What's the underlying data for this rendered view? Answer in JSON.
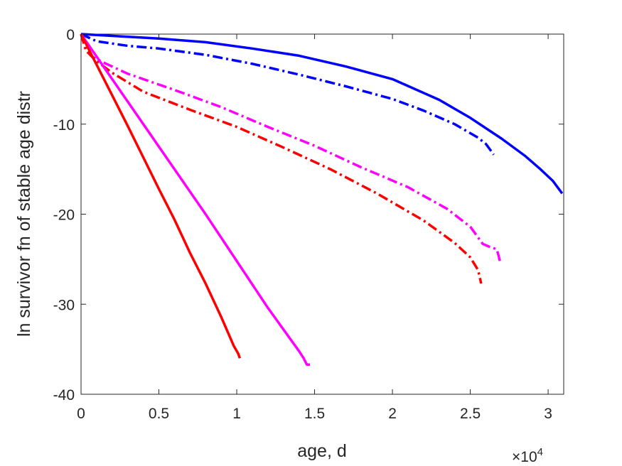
{
  "chart_data": {
    "type": "line",
    "xlabel": "age, d",
    "ylabel": "ln survivor fn of stable age distr",
    "x_multiplier": {
      "base": "×10",
      "exponent": "4"
    },
    "xlim": [
      0,
      31000
    ],
    "ylim": [
      -40,
      0
    ],
    "xticks": [
      0,
      5000,
      10000,
      15000,
      20000,
      25000,
      30000
    ],
    "xtick_labels": [
      "0",
      "0.5",
      "1",
      "1.5",
      "2",
      "2.5",
      "3"
    ],
    "yticks": [
      0,
      -10,
      -20,
      -30,
      -40
    ],
    "ytick_labels": [
      "0",
      "-10",
      "-20",
      "-30",
      "-40"
    ],
    "grid": false,
    "box": true,
    "series": [
      {
        "color": "#0000ff",
        "style": "solid",
        "x": [
          0,
          2000,
          5000,
          8000,
          11000,
          14000,
          17000,
          20000,
          23000,
          25000,
          27000,
          28500,
          29500,
          30300,
          30900
        ],
        "y": [
          0,
          -0.2,
          -0.5,
          -0.9,
          -1.6,
          -2.4,
          -3.6,
          -5.0,
          -7.3,
          -9.3,
          -11.6,
          -13.5,
          -15.0,
          -16.3,
          -17.7
        ]
      },
      {
        "color": "#0000ff",
        "style": "dashdot",
        "x": [
          0,
          1000,
          3000,
          5000,
          8000,
          11000,
          14000,
          17000,
          20000,
          22000,
          24000,
          25500,
          26000,
          26300,
          26500
        ],
        "y": [
          0,
          -0.8,
          -1.3,
          -1.6,
          -2.3,
          -3.3,
          -4.5,
          -5.8,
          -7.2,
          -8.5,
          -10.0,
          -11.5,
          -12.2,
          -12.9,
          -13.4
        ]
      },
      {
        "color": "#ff00ff",
        "style": "dashdot",
        "x": [
          0,
          300,
          700,
          1500,
          3000,
          6000,
          9000,
          12000,
          15000,
          18000,
          21000,
          23500,
          25000,
          25800,
          26200,
          26700,
          26800,
          26900
        ],
        "y": [
          0,
          -1.5,
          -2.5,
          -3.2,
          -4.4,
          -6.2,
          -8.1,
          -10.3,
          -12.4,
          -14.8,
          -17.0,
          -19.4,
          -21.4,
          -23.3,
          -23.6,
          -23.9,
          -24.5,
          -25.2
        ]
      },
      {
        "color": "#ff0000",
        "style": "dashdot",
        "x": [
          0,
          300,
          700,
          1000,
          2000,
          4000,
          7000,
          10000,
          13000,
          16000,
          19000,
          22000,
          24000,
          25000,
          25500,
          25700
        ],
        "y": [
          0,
          -1.8,
          -2.5,
          -3.0,
          -4.3,
          -6.4,
          -8.4,
          -10.3,
          -12.6,
          -15.0,
          -17.7,
          -20.7,
          -23.2,
          -24.8,
          -26.2,
          -27.7
        ]
      },
      {
        "color": "#ff00ff",
        "style": "solid",
        "x": [
          0,
          2000,
          4000,
          6000,
          8000,
          10000,
          12000,
          14000,
          14300,
          14500,
          14700
        ],
        "y": [
          0,
          -5.0,
          -10.0,
          -15.0,
          -20.0,
          -25.2,
          -30.4,
          -35.2,
          -36.0,
          -36.7,
          -36.7
        ]
      },
      {
        "color": "#ff0000",
        "style": "solid",
        "x": [
          0,
          1000,
          2000,
          3000,
          4000,
          5000,
          6000,
          7000,
          8000,
          9000,
          9800,
          10100,
          10200
        ],
        "y": [
          0,
          -3.4,
          -6.8,
          -10.2,
          -13.7,
          -17.2,
          -20.6,
          -24.3,
          -27.7,
          -31.4,
          -34.6,
          -35.5,
          -36.0
        ]
      }
    ]
  }
}
